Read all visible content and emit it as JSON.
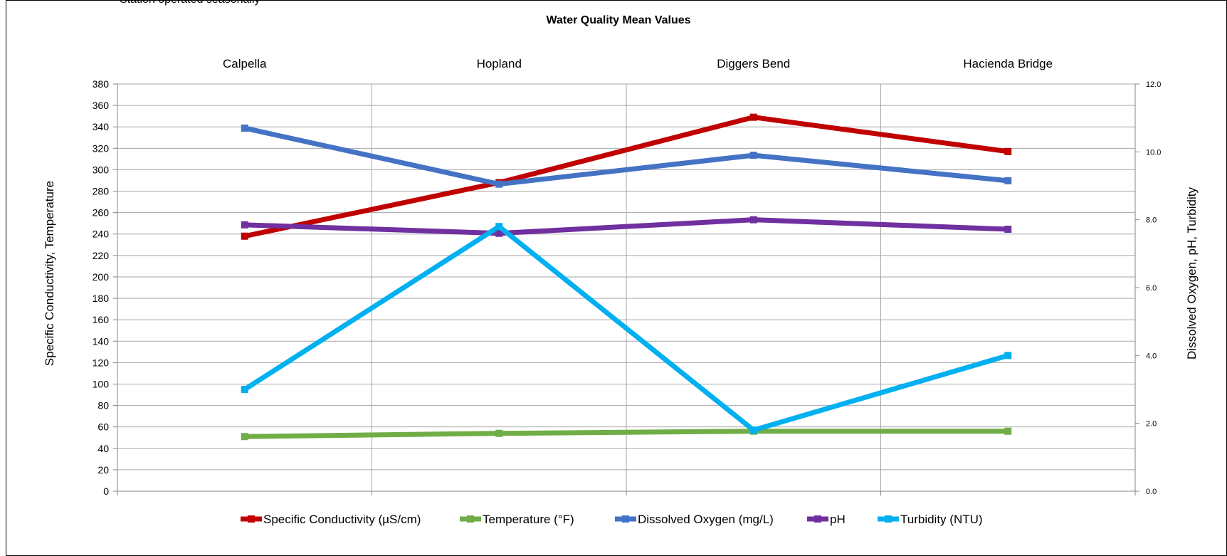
{
  "note": "Station operated seasonally",
  "chart_data": {
    "type": "line",
    "title": "Water Quality Mean Values",
    "categories": [
      "Calpella",
      "Hopland",
      "Diggers Bend",
      "Hacienda Bridge"
    ],
    "ylabel_left": "Specific Conductivity, Temperature",
    "ylabel_right": "Dissolved Oxygen, pH, Turbidity",
    "ylim_left": [
      0,
      380
    ],
    "ylim_right": [
      0,
      12
    ],
    "yticks_left": [
      "0",
      "20",
      "40",
      "60",
      "80",
      "100",
      "120",
      "140",
      "160",
      "180",
      "200",
      "220",
      "240",
      "260",
      "280",
      "300",
      "320",
      "340",
      "360",
      "380"
    ],
    "yticks_right": [
      "0.0",
      "2.0",
      "4.0",
      "6.0",
      "8.0",
      "10.0",
      "12.0"
    ],
    "grid": true,
    "legend_position": "bottom",
    "series": [
      {
        "name": "Specific Conductivity (µS/cm)",
        "axis": "left",
        "color": "#c00000",
        "values": [
          238,
          288,
          349,
          317
        ]
      },
      {
        "name": "Temperature  (°F)",
        "axis": "left",
        "color": "#70ad47",
        "values": [
          51,
          54,
          56,
          56
        ]
      },
      {
        "name": "Dissolved Oxygen (mg/L)",
        "axis": "right",
        "color": "#4472c4",
        "values": [
          10.7,
          9.05,
          9.9,
          9.15
        ]
      },
      {
        "name": "pH",
        "axis": "right",
        "color": "#7030a0",
        "values": [
          7.85,
          7.6,
          8.0,
          7.72
        ]
      },
      {
        "name": "Turbidity (NTU)",
        "axis": "right",
        "color": "#00b0f0",
        "values": [
          3.0,
          7.8,
          1.8,
          4.0
        ]
      }
    ]
  }
}
